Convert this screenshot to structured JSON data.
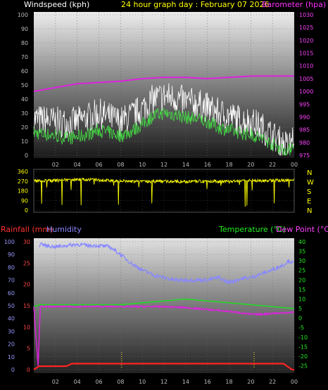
{
  "header": {
    "left_label": "Windspeed (kph)",
    "title": "24 hour graph day : February 07 2026",
    "right_label": "Barometer (hpa)"
  },
  "colors": {
    "wind": "#ffffff",
    "gust_green": "#44dd44",
    "barometer": "#dd22dd",
    "direction": "#ffff00",
    "rain": "#ff2222",
    "humidity": "#8888ff",
    "temperature": "#22dd22",
    "dewpoint": "#dd22dd",
    "right_axis_top": "#ff44ff",
    "right_axis_bottom": "#22ee22",
    "left_axis_bottom_outer": "#ff4444",
    "left_axis_bottom_inner": "#9999ff",
    "left_axis_top": "#bbbbbb",
    "hour_ticks": "#bbbbbb"
  },
  "hour_labels": [
    "02",
    "04",
    "06",
    "08",
    "10",
    "12",
    "14",
    "16",
    "18",
    "20",
    "22",
    "00"
  ],
  "chart_data": [
    {
      "type": "line",
      "name": "wind-barometer",
      "yaxis_left": {
        "label": "Windspeed (kph)",
        "ticks": [
          0,
          10,
          20,
          30,
          40,
          50,
          60,
          70,
          80,
          90,
          100
        ],
        "range": [
          0,
          100
        ]
      },
      "yaxis_right": {
        "label": "Barometer (hpa)",
        "ticks": [
          975,
          980,
          985,
          990,
          995,
          1000,
          1005,
          1010,
          1015,
          1020,
          1025,
          1030
        ],
        "range": [
          975,
          1030
        ]
      },
      "xaxis": {
        "hours": [
          0,
          24
        ]
      },
      "series": [
        {
          "key": "wind",
          "hours": [
            0,
            1,
            2,
            3,
            4,
            5,
            6,
            7,
            8,
            9,
            10,
            11,
            12,
            13,
            14,
            15,
            16,
            17,
            18,
            19,
            20,
            21,
            22,
            23,
            23.5,
            24
          ],
          "values": [
            16,
            15,
            14,
            12,
            13,
            15,
            18,
            16,
            14,
            17,
            22,
            28,
            30,
            29,
            27,
            26,
            24,
            20,
            18,
            16,
            15,
            12,
            8,
            4,
            3,
            10
          ]
        },
        {
          "key": "gust",
          "hours": [
            0,
            1,
            2,
            3,
            4,
            5,
            6,
            7,
            8,
            9,
            10,
            11,
            12,
            13,
            14,
            15,
            16,
            17,
            18,
            19,
            20,
            21,
            22,
            23,
            23.5,
            24
          ],
          "values": [
            26,
            25,
            24,
            23,
            24,
            27,
            30,
            27,
            24,
            28,
            33,
            40,
            42,
            41,
            38,
            37,
            34,
            30,
            28,
            25,
            24,
            20,
            14,
            8,
            6,
            15
          ]
        },
        {
          "key": "barometer",
          "hours": [
            0,
            2,
            4,
            6,
            8,
            10,
            12,
            14,
            16,
            18,
            20,
            22,
            24
          ],
          "values": [
            1000,
            1001.5,
            1003,
            1003.5,
            1004,
            1005,
            1005.5,
            1005.5,
            1005,
            1005.5,
            1006,
            1006,
            1006
          ]
        }
      ]
    },
    {
      "type": "line",
      "name": "wind-direction",
      "yaxis_left": {
        "ticks": [
          0,
          90,
          180,
          270,
          360
        ],
        "range": [
          0,
          360
        ]
      },
      "compass": [
        "N",
        "W",
        "S",
        "E",
        "N"
      ],
      "series": [
        {
          "key": "direction",
          "hours": [
            0,
            2,
            4,
            6,
            8,
            10,
            12,
            14,
            16,
            18,
            20,
            22,
            24
          ],
          "values": [
            270,
            275,
            285,
            280,
            270,
            265,
            270,
            265,
            270,
            265,
            275,
            275,
            280
          ]
        }
      ]
    },
    {
      "type": "line",
      "name": "rain-humidity-temperature",
      "header": {
        "rain_label": "Rainfall (mm)",
        "humidity_label": "Humidity",
        "temp_label": "Temperature (°C)",
        "dew_label": "Dew Point (°C)"
      },
      "yaxis_left_outer": {
        "ticks": [
          0,
          5,
          10,
          15,
          20,
          25,
          30
        ],
        "range": [
          0,
          30
        ]
      },
      "yaxis_left_inner": {
        "ticks": [
          0,
          10,
          20,
          30,
          40,
          50,
          60,
          70,
          80,
          90,
          100
        ],
        "range": [
          0,
          100
        ]
      },
      "yaxis_right": {
        "ticks": [
          -25,
          -20,
          -15,
          -10,
          -5,
          0,
          5,
          10,
          15,
          20,
          25,
          30,
          35,
          40
        ],
        "range": [
          -27,
          40
        ]
      },
      "series": [
        {
          "key": "humidity",
          "hours": [
            0.5,
            0.6,
            1,
            2,
            3,
            4,
            5,
            6,
            7,
            8,
            9,
            10,
            11,
            12,
            13,
            14,
            15,
            16,
            17,
            18,
            19,
            20,
            21,
            22,
            23,
            23.5,
            24
          ],
          "values": [
            96,
            99,
            97,
            96,
            97,
            98,
            97,
            97,
            96,
            90,
            83,
            78,
            74,
            72,
            70,
            70,
            70,
            70,
            72,
            68,
            71,
            72,
            75,
            78,
            82,
            85,
            83
          ]
        },
        {
          "key": "temperature",
          "hours": [
            0,
            0.5,
            1,
            2,
            4,
            6,
            8,
            10,
            12,
            14,
            16,
            18,
            20,
            22,
            24
          ],
          "values": [
            6,
            7,
            7,
            7,
            7,
            7,
            7,
            8,
            9,
            10,
            9,
            8,
            7,
            6,
            5
          ]
        },
        {
          "key": "dewpoint",
          "hours": [
            0,
            0.4,
            0.6,
            1,
            2,
            4,
            6,
            8,
            10,
            12,
            14,
            16,
            18,
            20,
            21,
            22,
            24
          ],
          "values": [
            6,
            -25,
            6,
            6,
            6,
            6,
            6,
            6,
            6,
            6,
            5.5,
            4.5,
            3.5,
            2,
            2,
            2.5,
            3
          ]
        },
        {
          "key": "rain",
          "hours": [
            0,
            0.5,
            1,
            3,
            3.5,
            23,
            23.8,
            24
          ],
          "values": [
            0,
            0.8,
            0.8,
            0.8,
            1.4,
            1.4,
            0,
            0
          ]
        }
      ]
    }
  ]
}
